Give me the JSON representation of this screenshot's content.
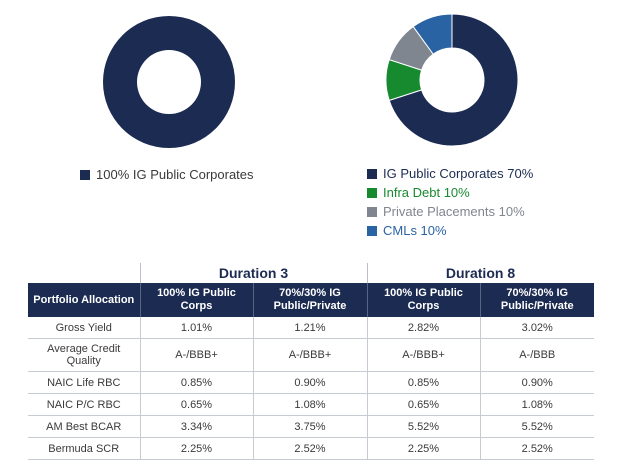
{
  "chart_data": [
    {
      "type": "pie",
      "style": "donut",
      "slices": [
        {
          "label": "100% IG Public Corporates",
          "value": 100,
          "color": "#1c2b52"
        }
      ],
      "legend_position": "bottom"
    },
    {
      "type": "pie",
      "style": "donut",
      "slices": [
        {
          "label": "IG Public Corporates 70%",
          "value": 70,
          "color": "#1c2b52"
        },
        {
          "label": "Infra Debt 10%",
          "value": 10,
          "color": "#178a30"
        },
        {
          "label": "Private Placements 10%",
          "value": 10,
          "color": "#7f868f"
        },
        {
          "label": "CMLs 10%",
          "value": 10,
          "color": "#2a63a3"
        }
      ],
      "legend_position": "bottom"
    }
  ],
  "legend_text_colors": {
    "IG Public Corporates 70%": "#1c2b52",
    "Infra Debt 10%": "#178a30",
    "Private Placements 10%": "#7f868f",
    "CMLs 10%": "#2a63a3",
    "100% IG Public Corporates": "#3a3a3a"
  },
  "table": {
    "group_headers": [
      "Duration 3",
      "Duration 8"
    ],
    "columns": [
      "Portfolio Allocation",
      "100% IG Public Corps",
      "70%/30% IG Public/Private",
      "100% IG Public Corps",
      "70%/30% IG Public/Private"
    ],
    "rows": [
      [
        "Gross Yield",
        "1.01%",
        "1.21%",
        "2.82%",
        "3.02%"
      ],
      [
        "Average Credit Quality",
        "A-/BBB+",
        "A-/BBB+",
        "A-/BBB+",
        "A-/BBB"
      ],
      [
        "NAIC Life RBC",
        "0.85%",
        "0.90%",
        "0.85%",
        "0.90%"
      ],
      [
        "NAIC P/C RBC",
        "0.65%",
        "1.08%",
        "0.65%",
        "1.08%"
      ],
      [
        "AM Best BCAR",
        "3.34%",
        "3.75%",
        "5.52%",
        "5.52%"
      ],
      [
        "Bermuda SCR",
        "2.25%",
        "2.52%",
        "2.25%",
        "2.52%"
      ]
    ]
  }
}
